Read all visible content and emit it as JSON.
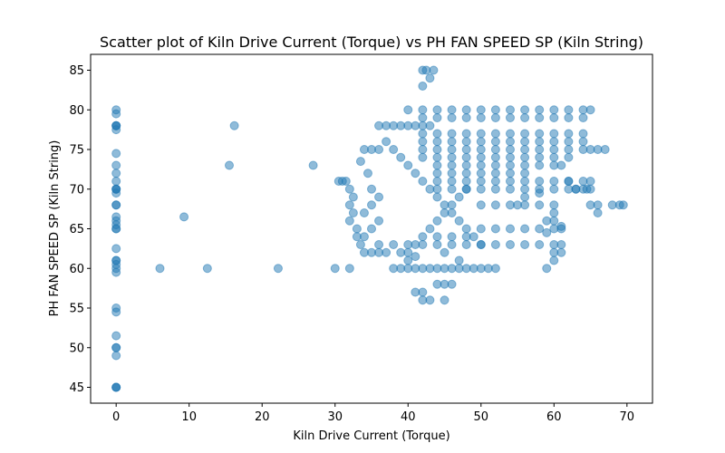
{
  "chart_data": {
    "type": "scatter",
    "title": "Scatter plot of Kiln Drive Current (Torque) vs PH FAN SPEED SP  (Kiln String)",
    "xlabel": "Kiln Drive Current (Torque)",
    "ylabel": "PH FAN SPEED SP  (Kiln String)",
    "xlim": [
      -3.5,
      73.5
    ],
    "ylim": [
      43,
      87
    ],
    "xticks": [
      0,
      10,
      20,
      30,
      40,
      50,
      60,
      70
    ],
    "yticks": [
      45,
      50,
      55,
      60,
      65,
      70,
      75,
      80,
      85
    ],
    "grid": false,
    "marker_color": "#1f77b4",
    "marker_alpha": 0.5,
    "series": [
      {
        "points": [
          [
            0,
            45
          ],
          [
            0,
            45
          ],
          [
            0,
            45
          ],
          [
            0,
            49
          ],
          [
            0,
            50
          ],
          [
            0,
            50
          ],
          [
            0,
            51.5
          ],
          [
            0,
            54.5
          ],
          [
            0,
            55
          ],
          [
            0,
            59.5
          ],
          [
            0,
            60
          ],
          [
            0,
            60.5
          ],
          [
            0,
            61
          ],
          [
            0,
            61
          ],
          [
            0,
            62.5
          ],
          [
            0,
            65
          ],
          [
            0,
            65
          ],
          [
            0,
            65.5
          ],
          [
            0,
            66
          ],
          [
            0,
            66.5
          ],
          [
            0,
            68
          ],
          [
            0,
            68
          ],
          [
            0,
            69.5
          ],
          [
            0,
            70
          ],
          [
            0,
            70
          ],
          [
            0,
            70
          ],
          [
            0,
            71
          ],
          [
            0,
            72
          ],
          [
            0,
            73
          ],
          [
            0,
            74.5
          ],
          [
            0,
            77.5
          ],
          [
            0,
            78
          ],
          [
            0,
            78
          ],
          [
            0,
            78
          ],
          [
            0,
            79.5
          ],
          [
            0,
            80
          ],
          [
            6,
            60
          ],
          [
            9.3,
            66.5
          ],
          [
            12.5,
            60
          ],
          [
            15.5,
            73
          ],
          [
            16.2,
            78
          ],
          [
            22.2,
            60
          ],
          [
            27,
            73
          ],
          [
            30,
            60
          ],
          [
            32,
            60
          ],
          [
            42,
            85
          ],
          [
            42.5,
            85
          ],
          [
            43.5,
            85
          ],
          [
            43,
            84
          ],
          [
            42,
            83
          ],
          [
            30.5,
            71
          ],
          [
            31,
            71
          ],
          [
            31.5,
            71
          ],
          [
            32,
            70
          ],
          [
            32.5,
            69
          ],
          [
            32,
            68
          ],
          [
            32.5,
            67
          ],
          [
            32,
            66
          ],
          [
            33,
            65
          ],
          [
            33,
            64
          ],
          [
            33.5,
            63
          ],
          [
            34,
            62
          ],
          [
            35,
            62
          ],
          [
            36,
            62
          ],
          [
            37,
            62
          ],
          [
            33.5,
            73.5
          ],
          [
            34,
            75
          ],
          [
            35,
            75
          ],
          [
            36,
            75
          ],
          [
            34.5,
            72
          ],
          [
            35,
            70
          ],
          [
            36,
            69
          ],
          [
            35,
            68
          ],
          [
            34,
            67
          ],
          [
            36,
            66
          ],
          [
            35,
            65
          ],
          [
            34,
            64
          ],
          [
            36,
            63
          ],
          [
            38,
            63
          ],
          [
            40,
            63
          ],
          [
            36,
            78
          ],
          [
            37,
            78
          ],
          [
            38,
            78
          ],
          [
            39,
            78
          ],
          [
            40,
            78
          ],
          [
            41,
            78
          ],
          [
            42,
            78
          ],
          [
            43,
            78
          ],
          [
            37,
            76
          ],
          [
            38,
            75
          ],
          [
            39,
            74
          ],
          [
            40,
            73
          ],
          [
            41,
            72
          ],
          [
            42,
            71
          ],
          [
            43,
            70
          ],
          [
            44,
            69
          ],
          [
            45,
            68
          ],
          [
            46,
            67
          ],
          [
            47,
            66
          ],
          [
            48,
            65
          ],
          [
            49,
            64
          ],
          [
            50,
            63
          ],
          [
            38,
            60
          ],
          [
            39,
            60
          ],
          [
            40,
            60
          ],
          [
            41,
            60
          ],
          [
            42,
            60
          ],
          [
            43,
            60
          ],
          [
            44,
            60
          ],
          [
            45,
            60
          ],
          [
            46,
            60
          ],
          [
            47,
            60
          ],
          [
            48,
            60
          ],
          [
            49,
            60
          ],
          [
            50,
            60
          ],
          [
            51,
            60
          ],
          [
            52,
            60
          ],
          [
            40,
            61
          ],
          [
            41,
            61.5
          ],
          [
            44,
            58
          ],
          [
            45,
            58
          ],
          [
            46,
            58
          ],
          [
            41,
            57
          ],
          [
            42,
            56
          ],
          [
            43,
            56
          ],
          [
            45,
            56
          ],
          [
            42,
            57
          ],
          [
            39,
            62
          ],
          [
            40,
            62
          ],
          [
            41,
            63
          ],
          [
            42,
            64
          ],
          [
            43,
            65
          ],
          [
            44,
            66
          ],
          [
            45,
            67
          ],
          [
            46,
            68
          ],
          [
            47,
            69
          ],
          [
            48,
            70
          ],
          [
            42,
            63
          ],
          [
            44,
            63
          ],
          [
            46,
            63
          ],
          [
            48,
            63
          ],
          [
            50,
            63
          ],
          [
            52,
            63
          ],
          [
            54,
            63
          ],
          [
            56,
            63
          ],
          [
            58,
            63
          ],
          [
            60,
            63
          ],
          [
            61,
            63
          ],
          [
            44,
            64
          ],
          [
            46,
            64
          ],
          [
            48,
            64
          ],
          [
            50,
            65
          ],
          [
            52,
            65
          ],
          [
            54,
            65
          ],
          [
            56,
            65
          ],
          [
            58,
            65
          ],
          [
            60,
            65
          ],
          [
            61,
            65.3
          ],
          [
            40,
            80
          ],
          [
            42,
            80
          ],
          [
            44,
            80
          ],
          [
            46,
            80
          ],
          [
            48,
            80
          ],
          [
            50,
            80
          ],
          [
            52,
            80
          ],
          [
            54,
            80
          ],
          [
            56,
            80
          ],
          [
            58,
            80
          ],
          [
            60,
            80
          ],
          [
            62,
            80
          ],
          [
            64,
            80
          ],
          [
            65,
            80
          ],
          [
            42,
            79
          ],
          [
            44,
            79
          ],
          [
            46,
            79
          ],
          [
            48,
            79
          ],
          [
            50,
            79
          ],
          [
            52,
            79
          ],
          [
            54,
            79
          ],
          [
            56,
            79
          ],
          [
            58,
            79
          ],
          [
            60,
            79
          ],
          [
            62,
            79
          ],
          [
            64,
            79
          ],
          [
            42,
            77
          ],
          [
            44,
            77
          ],
          [
            46,
            77
          ],
          [
            48,
            77
          ],
          [
            50,
            77
          ],
          [
            52,
            77
          ],
          [
            54,
            77
          ],
          [
            56,
            77
          ],
          [
            58,
            77
          ],
          [
            60,
            77
          ],
          [
            62,
            77
          ],
          [
            64,
            77
          ],
          [
            42,
            76
          ],
          [
            44,
            76
          ],
          [
            46,
            76
          ],
          [
            48,
            76
          ],
          [
            50,
            76
          ],
          [
            52,
            76
          ],
          [
            54,
            76
          ],
          [
            56,
            76
          ],
          [
            58,
            76
          ],
          [
            60,
            76
          ],
          [
            62,
            76
          ],
          [
            64,
            76
          ],
          [
            42,
            75
          ],
          [
            44,
            75
          ],
          [
            46,
            75
          ],
          [
            48,
            75
          ],
          [
            50,
            75
          ],
          [
            52,
            75
          ],
          [
            54,
            75
          ],
          [
            56,
            75
          ],
          [
            58,
            75
          ],
          [
            60,
            75
          ],
          [
            62,
            75
          ],
          [
            64,
            75
          ],
          [
            65,
            75
          ],
          [
            66,
            75
          ],
          [
            67,
            75
          ],
          [
            42,
            74
          ],
          [
            44,
            74
          ],
          [
            46,
            74
          ],
          [
            48,
            74
          ],
          [
            50,
            74
          ],
          [
            52,
            74
          ],
          [
            54,
            74
          ],
          [
            56,
            74
          ],
          [
            58,
            74
          ],
          [
            60,
            74
          ],
          [
            62,
            74
          ],
          [
            44,
            73
          ],
          [
            46,
            73
          ],
          [
            48,
            73
          ],
          [
            50,
            73
          ],
          [
            52,
            73
          ],
          [
            54,
            73
          ],
          [
            56,
            73
          ],
          [
            58,
            73
          ],
          [
            60,
            73
          ],
          [
            61,
            73
          ],
          [
            44,
            72
          ],
          [
            46,
            72
          ],
          [
            48,
            72
          ],
          [
            50,
            72
          ],
          [
            52,
            72
          ],
          [
            54,
            72
          ],
          [
            56,
            72
          ],
          [
            44,
            71
          ],
          [
            46,
            71
          ],
          [
            48,
            71
          ],
          [
            50,
            71
          ],
          [
            52,
            71
          ],
          [
            54,
            71
          ],
          [
            56,
            71
          ],
          [
            58,
            71
          ],
          [
            60,
            71
          ],
          [
            62,
            71
          ],
          [
            64,
            71
          ],
          [
            65,
            71
          ],
          [
            44,
            70
          ],
          [
            46,
            70
          ],
          [
            48,
            70
          ],
          [
            50,
            70
          ],
          [
            52,
            70
          ],
          [
            54,
            70
          ],
          [
            56,
            70
          ],
          [
            58,
            70
          ],
          [
            60,
            70
          ],
          [
            62,
            70
          ],
          [
            63,
            70
          ],
          [
            64,
            70
          ],
          [
            65,
            70
          ],
          [
            50,
            68
          ],
          [
            52,
            68
          ],
          [
            54,
            68
          ],
          [
            55,
            68
          ],
          [
            56,
            68
          ],
          [
            58,
            68
          ],
          [
            60,
            68
          ],
          [
            65,
            68
          ],
          [
            66,
            68
          ],
          [
            68,
            68
          ],
          [
            69,
            68
          ],
          [
            69.5,
            68
          ],
          [
            56,
            69
          ],
          [
            58,
            69.5
          ],
          [
            60,
            67
          ],
          [
            61,
            65
          ],
          [
            59,
            64.5
          ],
          [
            60,
            62
          ],
          [
            61,
            62
          ],
          [
            59,
            66
          ],
          [
            60,
            66
          ],
          [
            64.5,
            70
          ],
          [
            66,
            67
          ],
          [
            62,
            71
          ],
          [
            63,
            70
          ],
          [
            59,
            60
          ],
          [
            60,
            61
          ],
          [
            45,
            62
          ],
          [
            47,
            61
          ]
        ]
      }
    ]
  }
}
